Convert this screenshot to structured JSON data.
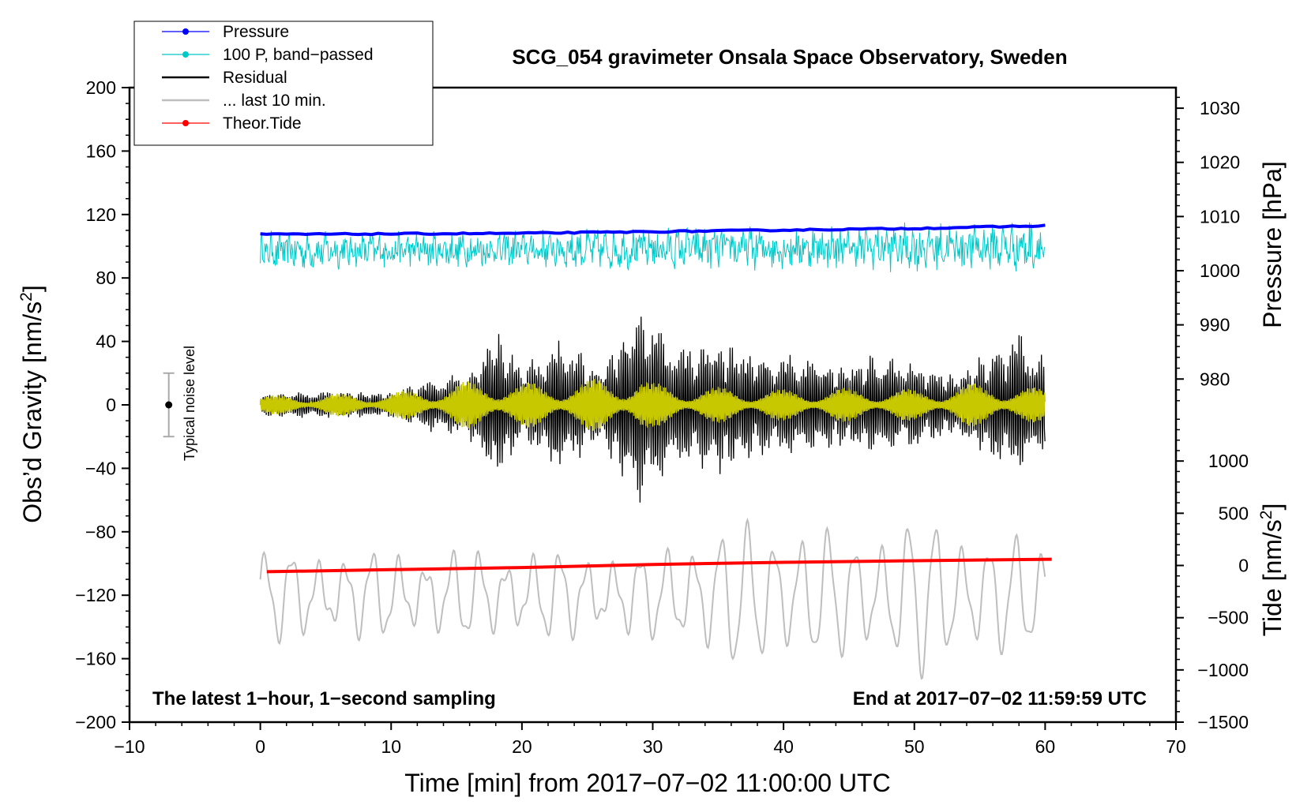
{
  "chart_data": {
    "type": "line",
    "title": "SCG_054 gravimeter Onsala Space Observatory, Sweden",
    "xlabel": "Time [min] from 2017−07−02 11:00:00 UTC",
    "ylabel_left": "Obs’d Gravity [nm/s",
    "ylabel_left_sup": "2",
    "ylabel_left_end": "]",
    "ylabel_pressure": "Pressure [hPa]",
    "ylabel_tide": "Tide [nm/s",
    "ylabel_tide_sup": "2",
    "ylabel_tide_end": "]",
    "xlim": [
      -10,
      70
    ],
    "ylim": [
      -200,
      200
    ],
    "pressure_lim": [
      974.5,
      1033.8
    ],
    "tide_lim": [
      -1500,
      1500
    ],
    "x_ticks": [
      {
        "v": -10,
        "label": "−10"
      },
      {
        "v": 0,
        "label": "0"
      },
      {
        "v": 10,
        "label": "10"
      },
      {
        "v": 20,
        "label": "20"
      },
      {
        "v": 30,
        "label": "30"
      },
      {
        "v": 40,
        "label": "40"
      },
      {
        "v": 50,
        "label": "50"
      },
      {
        "v": 60,
        "label": "60"
      },
      {
        "v": 70,
        "label": "70"
      }
    ],
    "y_ticks": [
      {
        "v": 200,
        "label": "200"
      },
      {
        "v": 160,
        "label": "160"
      },
      {
        "v": 120,
        "label": "120"
      },
      {
        "v": 80,
        "label": "80"
      },
      {
        "v": 40,
        "label": "40"
      },
      {
        "v": 0,
        "label": "0"
      },
      {
        "v": -40,
        "label": "−40"
      },
      {
        "v": -80,
        "label": "−80"
      },
      {
        "v": -120,
        "label": "−120"
      },
      {
        "v": -160,
        "label": "−160"
      },
      {
        "v": -200,
        "label": "−200"
      }
    ],
    "pressure_ticks": [
      {
        "v": 1030,
        "label": "1030"
      },
      {
        "v": 1020,
        "label": "1020"
      },
      {
        "v": 1010,
        "label": "1010"
      },
      {
        "v": 1000,
        "label": "1000"
      },
      {
        "v": 990,
        "label": "990"
      },
      {
        "v": 980,
        "label": "980"
      }
    ],
    "tide_ticks": [
      {
        "v": 1000,
        "label": "1000"
      },
      {
        "v": 500,
        "label": "500"
      },
      {
        "v": 0,
        "label": "0"
      },
      {
        "v": -500,
        "label": "−500"
      },
      {
        "v": -1000,
        "label": "−1000"
      },
      {
        "v": -1500,
        "label": "−1500"
      }
    ],
    "legend": [
      {
        "label": "Pressure",
        "color": "#0000ff",
        "marker": true
      },
      {
        "label": "100 P, band−passed",
        "color": "#00c8c8",
        "marker": true
      },
      {
        "label": "Residual",
        "color": "#000000",
        "marker": false
      },
      {
        "label": "... last 10 min.",
        "color": "#bebebe",
        "marker": false
      },
      {
        "label": "Theor.Tide",
        "color": "#ff0000",
        "marker": true
      }
    ],
    "legend_position": "top-left",
    "annotations": {
      "left": "The latest 1−hour, 1−second sampling",
      "right": "End at 2017−07−02 11:59:59 UTC",
      "noise": "Typical noise level"
    },
    "noise_bar": {
      "x": -7,
      "center": 0,
      "range": [
        -20,
        20
      ]
    },
    "series": [
      {
        "name": "Pressure",
        "axis": "pressure",
        "color": "#0000ff",
        "x": [
          0,
          10,
          20,
          30,
          40,
          50,
          60
        ],
        "values": [
          1006.7,
          1006.8,
          1006.9,
          1007.2,
          1007.5,
          1007.8,
          1008.3
        ]
      },
      {
        "name": "100 P, band−passed",
        "axis": "left",
        "color": "#00c8c8",
        "x": [
          0,
          60
        ],
        "values": [
          97,
          97
        ],
        "amplitude_envelope": {
          "x": [
            0,
            10,
            20,
            30,
            40,
            50,
            60
          ],
          "values": [
            12,
            11,
            12,
            13,
            13,
            15,
            16
          ]
        }
      },
      {
        "name": "Residual",
        "axis": "left",
        "color": "#000000",
        "x": [
          0,
          60
        ],
        "values": [
          0,
          0
        ],
        "amplitude_envelope": {
          "x": [
            0,
            5,
            10,
            13,
            16,
            18,
            20,
            23,
            26,
            29,
            30,
            32,
            35,
            38,
            41,
            44,
            47,
            50,
            53,
            56,
            58,
            60
          ],
          "values": [
            8,
            9,
            9,
            18,
            22,
            52,
            26,
            45,
            25,
            68,
            55,
            40,
            45,
            35,
            34,
            28,
            32,
            30,
            20,
            38,
            48,
            30
          ]
        }
      },
      {
        "name": "Residual (band, yellow)",
        "axis": "left",
        "color": "#c8c800",
        "x": [
          0,
          60
        ],
        "values": [
          0,
          0
        ],
        "amplitude_envelope": {
          "x": [
            0,
            10,
            15,
            18,
            20,
            25,
            29,
            30,
            33,
            40,
            45,
            50,
            56,
            60
          ],
          "values": [
            6,
            8,
            14,
            18,
            14,
            16,
            20,
            14,
            12,
            10,
            11,
            10,
            15,
            10
          ]
        }
      },
      {
        "name": "... last 10 min.",
        "axis": "left",
        "color": "#bebebe",
        "x": [
          0,
          60
        ],
        "values": [
          -120,
          -120
        ],
        "amplitude_envelope": {
          "x": [
            0,
            10,
            20,
            30,
            34,
            40,
            45,
            50,
            55,
            60
          ],
          "values": [
            26,
            25,
            26,
            24,
            40,
            45,
            35,
            48,
            38,
            30
          ]
        }
      },
      {
        "name": "Theor.Tide",
        "axis": "tide",
        "color": "#ff0000",
        "x": [
          0.5,
          10,
          20,
          30,
          40,
          50,
          60.5
        ],
        "values": [
          -60,
          -40,
          -20,
          10,
          30,
          45,
          60
        ]
      }
    ]
  }
}
